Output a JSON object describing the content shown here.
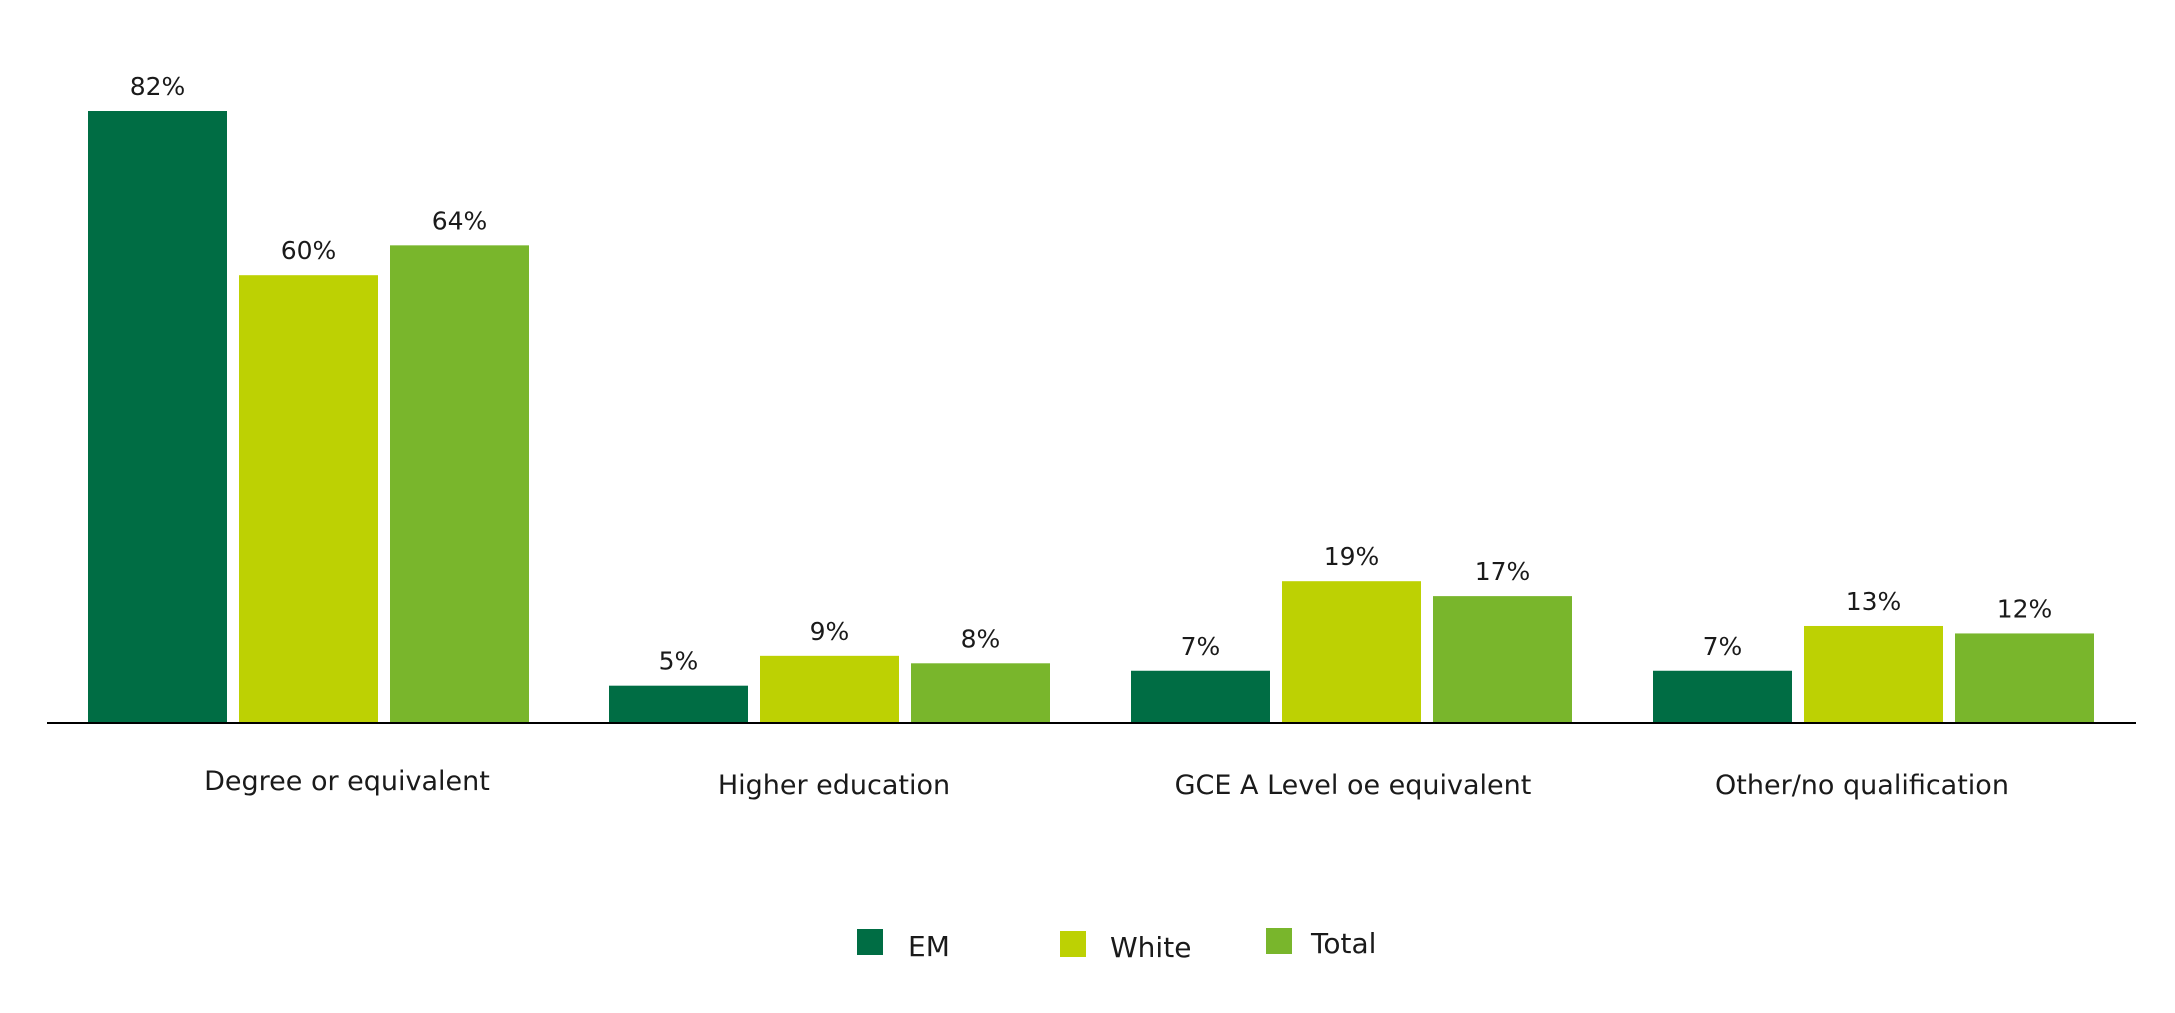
{
  "chart_data": {
    "type": "bar",
    "categories": [
      "Degree or equivalent",
      "Higher education",
      "GCE A Level oe equivalent",
      "Other/no qualification"
    ],
    "series": [
      {
        "name": "EM",
        "values": [
          82,
          5,
          7,
          7
        ],
        "labels": [
          "82%",
          "5%",
          "7%",
          "7%"
        ],
        "color": "#006d44"
      },
      {
        "name": "White",
        "values": [
          60,
          9,
          19,
          13
        ],
        "labels": [
          "60%",
          "9%",
          "19%",
          "13%"
        ],
        "color": "#bdd103"
      },
      {
        "name": "Total",
        "values": [
          64,
          8,
          17,
          12
        ],
        "labels": [
          "64%",
          "8%",
          "17%",
          "12%"
        ],
        "color": "#79b62c"
      }
    ],
    "title": "",
    "xlabel": "",
    "ylabel": "",
    "ylim": [
      0,
      82
    ],
    "grid": false,
    "legend_position": "bottom-center",
    "axis_color": "#000000",
    "value_label_color": "#1a1a1a"
  }
}
